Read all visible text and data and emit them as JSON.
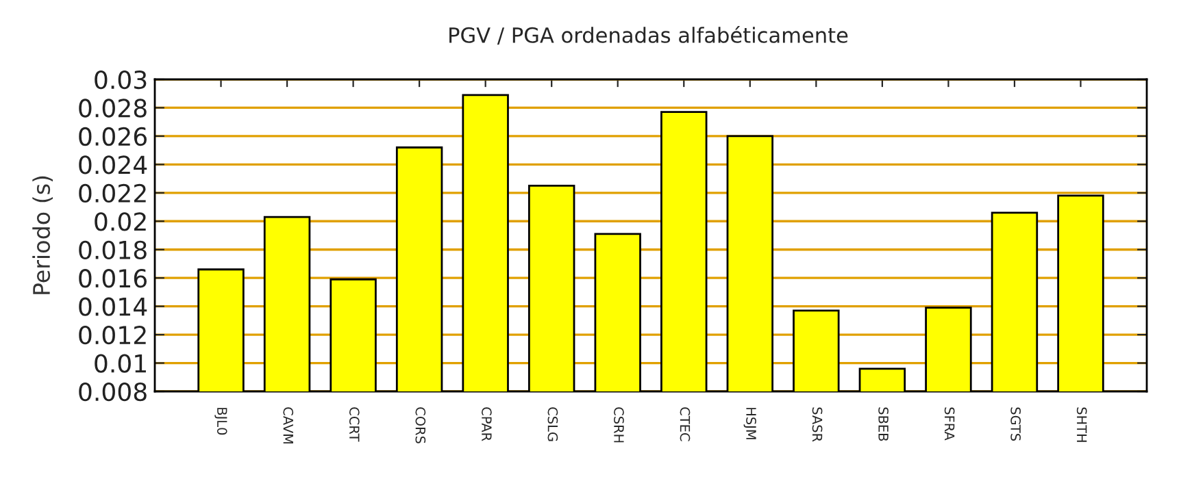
{
  "chart_data": {
    "type": "bar",
    "title": "PGV / PGA ordenadas alfabéticamente",
    "ylabel": "Periodo (s)",
    "categories": [
      "BJL0",
      "CAVM",
      "CCRT",
      "CORS",
      "CPAR",
      "CSLG",
      "CSRH",
      "CTEC",
      "HSJM",
      "SASR",
      "SBEB",
      "SFRA",
      "SGTS",
      "SHTH"
    ],
    "values": [
      0.0166,
      0.0203,
      0.0159,
      0.0252,
      0.0289,
      0.0225,
      0.0191,
      0.0277,
      0.026,
      0.0137,
      0.0096,
      0.0139,
      0.0206,
      0.0218
    ],
    "color": "#ffff00",
    "ylim": [
      0.008,
      0.03
    ],
    "yticks": [
      0.008,
      0.01,
      0.012,
      0.014,
      0.016,
      0.018,
      0.02,
      0.022,
      0.024,
      0.026,
      0.028,
      0.03
    ],
    "grid": "y",
    "legend": false
  }
}
